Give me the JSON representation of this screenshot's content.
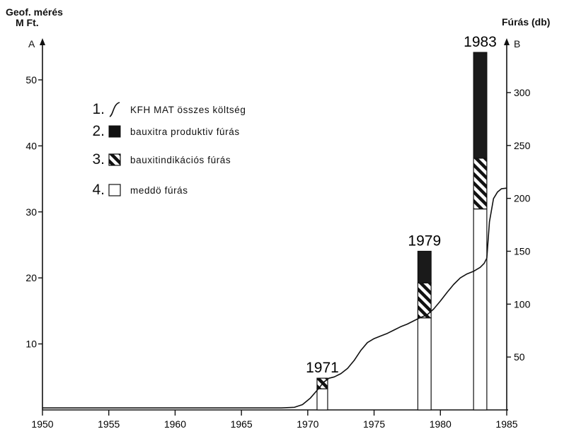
{
  "chart_data": {
    "type": "bar",
    "left_axis": {
      "title_line1": "Geof. mérés",
      "title_line2": "M Ft.",
      "letter": "A",
      "ticks": [
        10,
        20,
        30,
        40,
        50
      ]
    },
    "right_axis": {
      "title": "Fúrás  (db)",
      "letter": "B",
      "ticks": [
        50,
        100,
        150,
        200,
        250,
        300
      ]
    },
    "x_axis": {
      "ticks": [
        1950,
        1955,
        1960,
        1965,
        1970,
        1975,
        1980,
        1985
      ],
      "range": [
        1950,
        1985
      ]
    },
    "ylim_left": [
      0,
      55
    ],
    "ylim_right": [
      0,
      345
    ],
    "legend": [
      {
        "num": "1.",
        "symbol": "curve",
        "label": "KFH  MAT összes költség"
      },
      {
        "num": "2.",
        "symbol": "black",
        "label": "bauxitra  produktiv  fúrás"
      },
      {
        "num": "3.",
        "symbol": "hatched",
        "label": "bauxitindikációs  fúrás"
      },
      {
        "num": "4.",
        "symbol": "white",
        "label": "meddö  fúrás"
      }
    ],
    "bars": [
      {
        "year_label": "1971",
        "x_start": 1970.7,
        "x_end": 1971.5,
        "medd": 20,
        "indik": 10,
        "prod": 0
      },
      {
        "year_label": "1979",
        "x_start": 1978.3,
        "x_end": 1979.3,
        "medd": 87,
        "indik": 33,
        "prod": 30
      },
      {
        "year_label": "1983",
        "x_start": 1982.5,
        "x_end": 1983.5,
        "medd": 190,
        "indik": 48,
        "prod": 100
      }
    ],
    "series": [
      {
        "x": [
          1950,
          1955,
          1960,
          1965,
          1968,
          1969,
          1969.6,
          1970.2,
          1970.8,
          1971.2,
          1971.6,
          1972,
          1972.5,
          1973,
          1973.5,
          1974,
          1974.5,
          1975,
          1975.5,
          1976,
          1976.5,
          1977,
          1977.5,
          1978,
          1978.5,
          1979,
          1979.5,
          1980,
          1980.5,
          1981,
          1981.5,
          1982,
          1982.5,
          1983,
          1983.3,
          1983.5,
          1983.7,
          1984,
          1984.3,
          1984.6,
          1985
        ],
        "y": [
          0.3,
          0.3,
          0.3,
          0.3,
          0.3,
          0.4,
          0.8,
          1.8,
          3.2,
          4.2,
          4.8,
          5.0,
          5.5,
          6.3,
          7.5,
          9.0,
          10.2,
          10.8,
          11.2,
          11.6,
          12.1,
          12.6,
          13.0,
          13.5,
          14.0,
          14.4,
          15.3,
          16.5,
          17.8,
          19.0,
          20.0,
          20.6,
          21.0,
          21.6,
          22.2,
          23.0,
          28.5,
          32.0,
          33.0,
          33.5,
          33.6
        ]
      }
    ]
  }
}
